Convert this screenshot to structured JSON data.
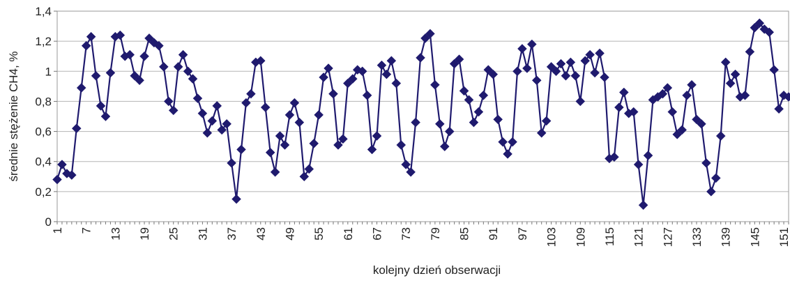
{
  "chart_data": {
    "type": "line",
    "title": "",
    "xlabel": "kolejny dzień obserwacji",
    "ylabel": "średnie stężenie CH4, %",
    "ylim": [
      0,
      1.4
    ],
    "yticks": [
      "0",
      "0,2",
      "0,4",
      "0,6",
      "0,8",
      "1",
      "1,2",
      "1,4"
    ],
    "xticks": [
      "1",
      "7",
      "13",
      "19",
      "25",
      "31",
      "37",
      "43",
      "49",
      "55",
      "61",
      "67",
      "73",
      "79",
      "85",
      "91",
      "97",
      "103",
      "109",
      "115",
      "121",
      "127",
      "133",
      "139",
      "145",
      "151"
    ],
    "xlim": [
      1,
      152
    ],
    "grid": "horizontal",
    "legend": "none",
    "series": [
      {
        "color": "#1f1a6e",
        "marker": "diamond",
        "x": [
          1,
          2,
          3,
          4,
          5,
          6,
          7,
          8,
          9,
          10,
          11,
          12,
          13,
          14,
          15,
          16,
          17,
          18,
          19,
          20,
          21,
          22,
          23,
          24,
          25,
          26,
          27,
          28,
          29,
          30,
          31,
          32,
          33,
          34,
          35,
          36,
          37,
          38,
          39,
          40,
          41,
          42,
          43,
          44,
          45,
          46,
          47,
          48,
          49,
          50,
          51,
          52,
          53,
          54,
          55,
          56,
          57,
          58,
          59,
          60,
          61,
          62,
          63,
          64,
          65,
          66,
          67,
          68,
          69,
          70,
          71,
          72,
          73,
          74,
          75,
          76,
          77,
          78,
          79,
          80,
          81,
          82,
          83,
          84,
          85,
          86,
          87,
          88,
          89,
          90,
          91,
          92,
          93,
          94,
          95,
          96,
          97,
          98,
          99,
          100,
          101,
          102,
          103,
          104,
          105,
          106,
          107,
          108,
          109,
          110,
          111,
          112,
          113,
          114,
          115,
          116,
          117,
          118,
          119,
          120,
          121,
          122,
          123,
          124,
          125,
          126,
          127,
          128,
          129,
          130,
          131,
          132,
          133,
          134,
          135,
          136,
          137,
          138,
          139,
          140,
          141,
          142,
          143,
          144,
          145,
          146,
          147,
          148,
          149,
          150,
          151,
          152
        ],
        "values": [
          0.28,
          0.38,
          0.32,
          0.31,
          0.62,
          0.89,
          1.17,
          1.23,
          0.97,
          0.77,
          0.7,
          0.99,
          1.23,
          1.24,
          1.1,
          1.11,
          0.97,
          0.94,
          1.1,
          1.22,
          1.19,
          1.17,
          1.03,
          0.8,
          0.74,
          1.03,
          1.11,
          1.0,
          0.95,
          0.82,
          0.72,
          0.59,
          0.67,
          0.77,
          0.61,
          0.65,
          0.39,
          0.15,
          0.48,
          0.79,
          0.85,
          1.06,
          1.07,
          0.76,
          0.46,
          0.33,
          0.57,
          0.51,
          0.71,
          0.79,
          0.66,
          0.3,
          0.35,
          0.52,
          0.71,
          0.96,
          1.02,
          0.85,
          0.51,
          0.55,
          0.92,
          0.95,
          1.01,
          1.0,
          0.84,
          0.48,
          0.57,
          1.04,
          0.98,
          1.07,
          0.92,
          0.51,
          0.38,
          0.33,
          0.66,
          1.09,
          1.22,
          1.25,
          0.91,
          0.65,
          0.5,
          0.6,
          1.05,
          1.08,
          0.87,
          0.81,
          0.66,
          0.73,
          0.84,
          1.01,
          0.98,
          0.68,
          0.53,
          0.45,
          0.53,
          1.0,
          1.15,
          1.02,
          1.18,
          0.94,
          0.59,
          0.67,
          1.03,
          1.0,
          1.05,
          0.97,
          1.06,
          0.97,
          0.8,
          1.07,
          1.11,
          0.99,
          1.12,
          0.96,
          0.42,
          0.43,
          0.76,
          0.86,
          0.72,
          0.73,
          0.38,
          0.11,
          0.44,
          0.81,
          0.83,
          0.85,
          0.89,
          0.73,
          0.58,
          0.61,
          0.84,
          0.91,
          0.68,
          0.65,
          0.39,
          0.2,
          0.29,
          0.57,
          1.06,
          0.92,
          0.98,
          0.83,
          0.84,
          1.13,
          1.29,
          1.32,
          1.28,
          1.26,
          1.01,
          0.75,
          0.84,
          0.83
        ]
      }
    ]
  }
}
